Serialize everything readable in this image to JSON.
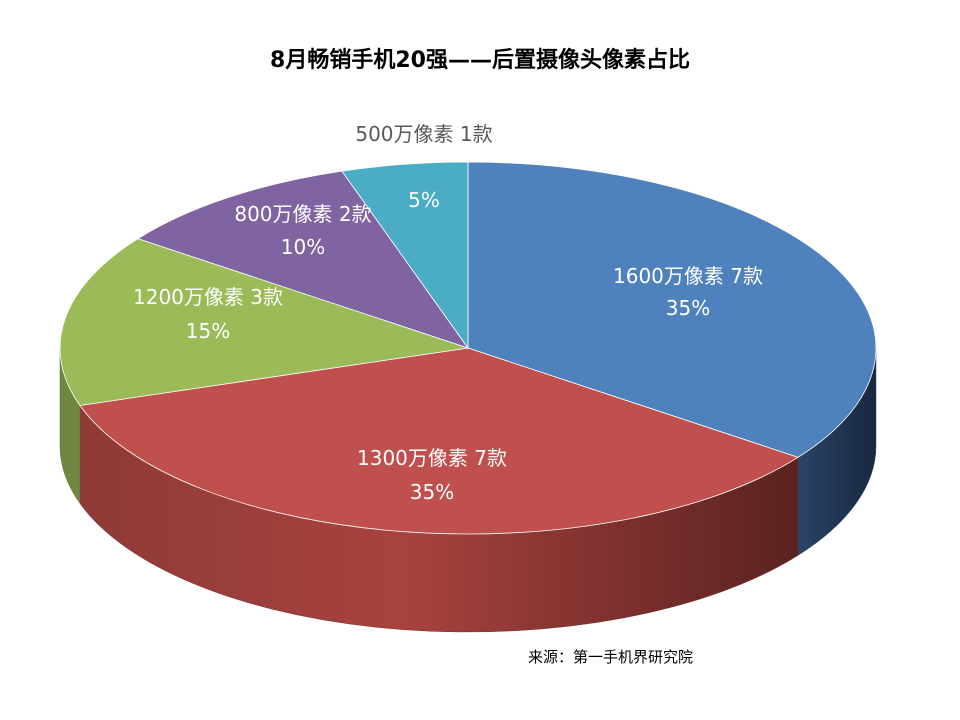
{
  "chart_data": {
    "type": "pie",
    "title": "8月畅销手机20强——后置摄像头像素占比",
    "source": "来源：第一手机界研究院",
    "slices": [
      {
        "label": "1600万像素 7款",
        "percent_label": "35%",
        "value": 35,
        "color": "#4f81bd"
      },
      {
        "label": "1300万像素 7款",
        "percent_label": "35%",
        "value": 35,
        "color": "#c0504d"
      },
      {
        "label": "1200万像素 3款",
        "percent_label": "15%",
        "value": 15,
        "color": "#9bbb59"
      },
      {
        "label": "800万像素 2款",
        "percent_label": "10%",
        "value": 10,
        "color": "#8064a2"
      },
      {
        "label": "500万像素 1款",
        "percent_label": "5%",
        "value": 5,
        "color": "#4bacc6"
      }
    ]
  }
}
